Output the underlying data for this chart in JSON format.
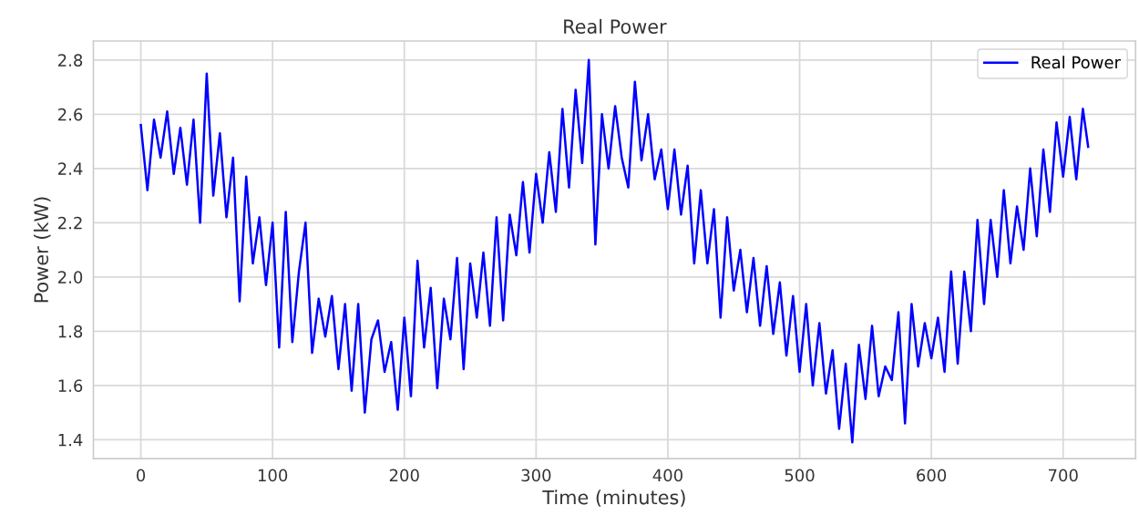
{
  "chart_data": {
    "type": "line",
    "title": "Real Power",
    "xlabel": "Time (minutes)",
    "ylabel": "Power (kW)",
    "x": [
      0,
      5,
      10,
      15,
      20,
      25,
      30,
      35,
      40,
      45,
      50,
      55,
      60,
      65,
      70,
      75,
      80,
      85,
      90,
      95,
      100,
      105,
      110,
      115,
      120,
      125,
      130,
      135,
      140,
      145,
      150,
      155,
      160,
      165,
      170,
      175,
      180,
      185,
      190,
      195,
      200,
      205,
      210,
      215,
      220,
      225,
      230,
      235,
      240,
      245,
      250,
      255,
      260,
      265,
      270,
      275,
      280,
      285,
      290,
      295,
      300,
      305,
      310,
      315,
      320,
      325,
      330,
      335,
      340,
      345,
      350,
      355,
      360,
      365,
      370,
      375,
      380,
      385,
      390,
      395,
      400,
      405,
      410,
      415,
      420,
      425,
      430,
      435,
      440,
      445,
      450,
      455,
      460,
      465,
      470,
      475,
      480,
      485,
      490,
      495,
      500,
      505,
      510,
      515,
      520,
      525,
      530,
      535,
      540,
      545,
      550,
      555,
      560,
      565,
      570,
      575,
      580,
      585,
      590,
      595,
      600,
      605,
      610,
      615,
      620,
      625,
      630,
      635,
      640,
      645,
      650,
      655,
      660,
      665,
      670,
      675,
      680,
      685,
      690,
      695,
      700,
      705,
      710,
      715,
      719
    ],
    "series": [
      {
        "name": "Real Power",
        "color": "#0000ff",
        "values": [
          2.56,
          2.32,
          2.58,
          2.44,
          2.61,
          2.38,
          2.55,
          2.34,
          2.58,
          2.2,
          2.75,
          2.3,
          2.53,
          2.22,
          2.44,
          1.91,
          2.37,
          2.05,
          2.22,
          1.97,
          2.2,
          1.74,
          2.24,
          1.76,
          2.02,
          2.2,
          1.72,
          1.92,
          1.78,
          1.93,
          1.66,
          1.9,
          1.58,
          1.9,
          1.5,
          1.77,
          1.84,
          1.65,
          1.76,
          1.51,
          1.85,
          1.56,
          2.06,
          1.74,
          1.96,
          1.59,
          1.92,
          1.77,
          2.07,
          1.66,
          2.05,
          1.85,
          2.09,
          1.82,
          2.22,
          1.84,
          2.23,
          2.08,
          2.35,
          2.09,
          2.38,
          2.2,
          2.46,
          2.24,
          2.62,
          2.33,
          2.69,
          2.42,
          2.8,
          2.12,
          2.6,
          2.4,
          2.63,
          2.44,
          2.33,
          2.72,
          2.43,
          2.6,
          2.36,
          2.47,
          2.25,
          2.47,
          2.23,
          2.41,
          2.05,
          2.32,
          2.05,
          2.25,
          1.85,
          2.22,
          1.95,
          2.1,
          1.87,
          2.07,
          1.82,
          2.04,
          1.79,
          1.98,
          1.71,
          1.93,
          1.65,
          1.9,
          1.6,
          1.83,
          1.57,
          1.73,
          1.44,
          1.68,
          1.39,
          1.75,
          1.55,
          1.82,
          1.56,
          1.67,
          1.62,
          1.87,
          1.46,
          1.9,
          1.67,
          1.83,
          1.7,
          1.85,
          1.65,
          2.02,
          1.68,
          2.02,
          1.8,
          2.21,
          1.9,
          2.21,
          2.0,
          2.32,
          2.05,
          2.26,
          2.1,
          2.4,
          2.15,
          2.47,
          2.24,
          2.57,
          2.37,
          2.59,
          2.36,
          2.62,
          2.48
        ]
      }
    ],
    "xlim": [
      -36,
      755
    ],
    "ylim": [
      1.33,
      2.87
    ],
    "xticks": [
      0,
      100,
      200,
      300,
      400,
      500,
      600,
      700
    ],
    "yticks": [
      1.4,
      1.6,
      1.8,
      {
        "value": 2.0,
        "label": "2.0"
      },
      2.2,
      2.4,
      2.6,
      2.8
    ],
    "grid": true,
    "legend": "top right",
    "marker": "none",
    "line_style": "solid"
  }
}
